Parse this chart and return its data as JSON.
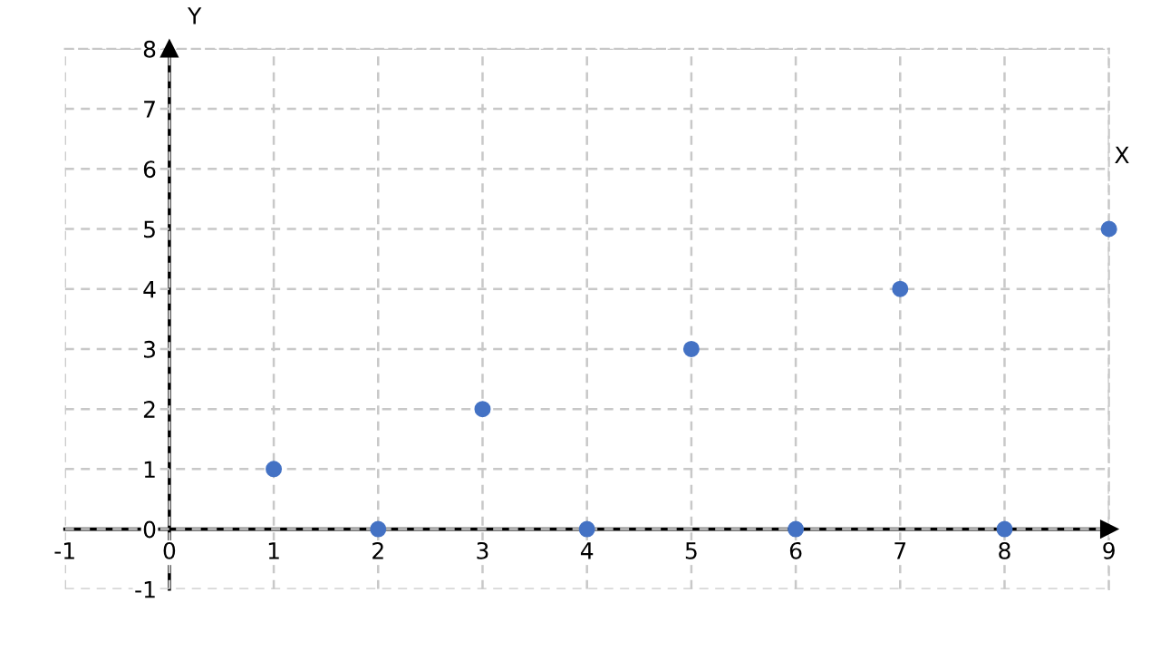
{
  "chart_data": {
    "type": "scatter",
    "xlabel": "X",
    "ylabel": "Y",
    "x": [
      1,
      2,
      3,
      4,
      5,
      6,
      7,
      8,
      9
    ],
    "series": [
      {
        "color": "#4472c4",
        "values": [
          1,
          0,
          2,
          0,
          3,
          0,
          4,
          0,
          5
        ]
      }
    ],
    "xlim": [
      -1,
      9
    ],
    "ylim": [
      -1,
      8
    ],
    "xticks": [
      -1,
      0,
      1,
      2,
      3,
      4,
      5,
      6,
      7,
      8,
      9
    ],
    "yticks": [
      -1,
      0,
      1,
      2,
      3,
      4,
      5,
      6,
      7,
      8
    ],
    "grid": true,
    "marker": "circle"
  }
}
